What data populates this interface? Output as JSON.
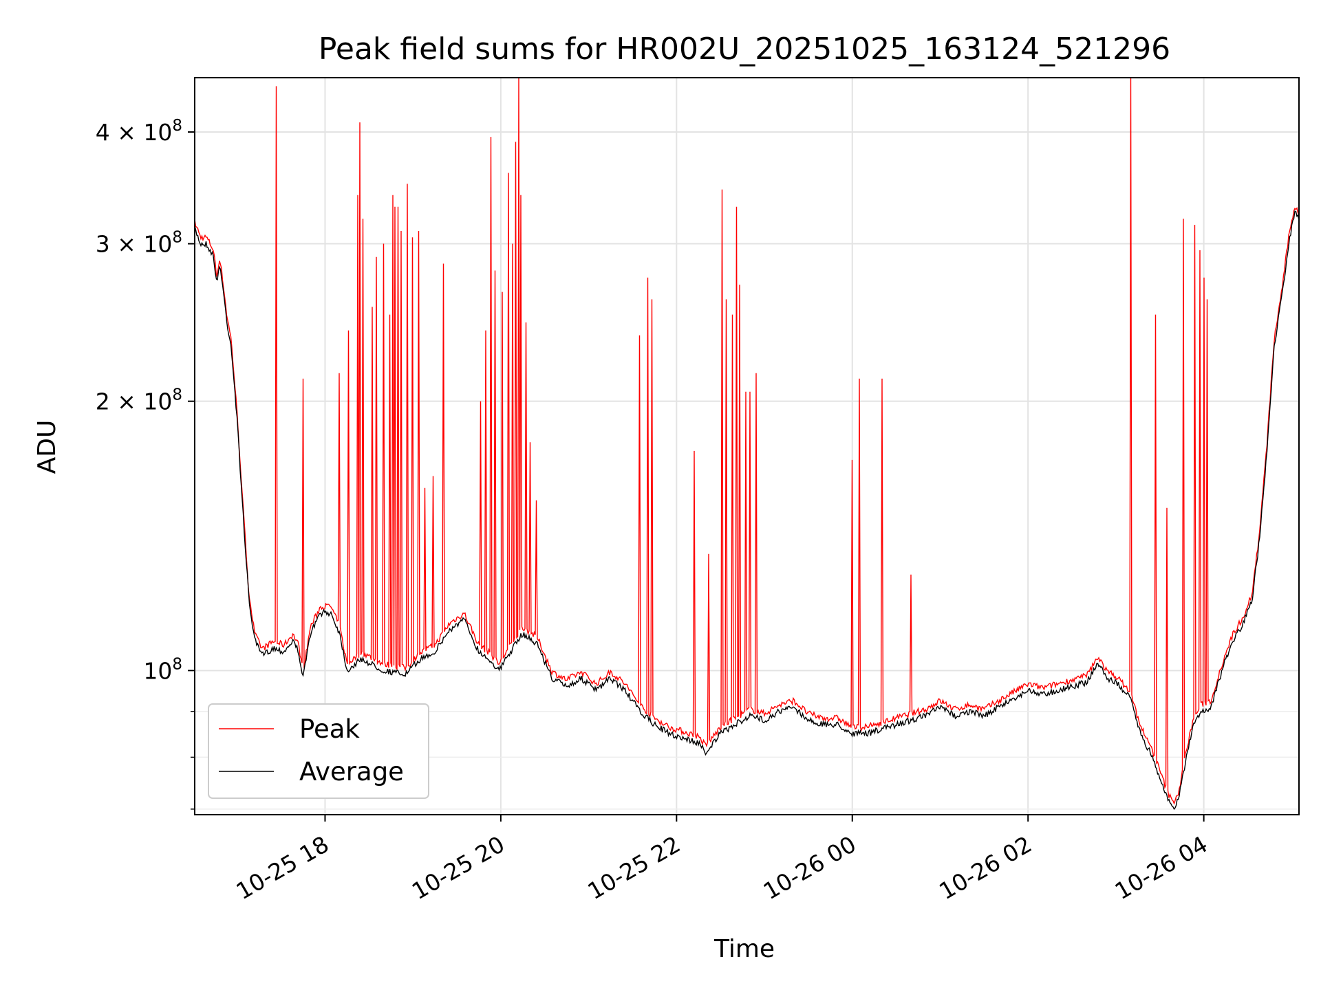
{
  "chart_data": {
    "type": "line",
    "title": "Peak field sums for HR002U_20251025_163124_521296",
    "xlabel": "Time",
    "ylabel": "ADU",
    "x_start": "2025-10-25T16:31",
    "x_end": "2025-10-26T05:05",
    "x_ticks": [
      {
        "time": "2025-10-25T18:00",
        "label": "10-25 18"
      },
      {
        "time": "2025-10-25T20:00",
        "label": "10-25 20"
      },
      {
        "time": "2025-10-25T22:00",
        "label": "10-25 22"
      },
      {
        "time": "2025-10-26T00:00",
        "label": "10-26 00"
      },
      {
        "time": "2025-10-26T02:00",
        "label": "10-26 02"
      },
      {
        "time": "2025-10-26T04:00",
        "label": "10-26 04"
      }
    ],
    "y_scale": "log",
    "ylim": [
      69000000,
      460000000
    ],
    "y_ticks": [
      {
        "value": 100000000,
        "label": "10",
        "exp": "8"
      },
      {
        "value": 200000000,
        "label": "2 × 10",
        "exp": "8"
      },
      {
        "value": 300000000,
        "label": "3 × 10",
        "exp": "8"
      },
      {
        "value": 400000000,
        "label": "4 × 10",
        "exp": "8"
      }
    ],
    "y_minor_ticks": [
      70000000,
      80000000,
      90000000
    ],
    "grid": true,
    "legend_position": "lower-left",
    "series": [
      {
        "name": "Average",
        "color": "#000000",
        "points": [
          [
            "2025-10-25T16:31",
            312000000
          ],
          [
            "2025-10-25T16:35",
            300000000
          ],
          [
            "2025-10-25T16:39",
            300000000
          ],
          [
            "2025-10-25T16:44",
            290000000
          ],
          [
            "2025-10-25T16:46",
            270000000
          ],
          [
            "2025-10-25T16:48",
            285000000
          ],
          [
            "2025-10-25T16:50",
            270000000
          ],
          [
            "2025-10-25T16:53",
            245000000
          ],
          [
            "2025-10-25T16:56",
            230000000
          ],
          [
            "2025-10-25T17:00",
            190000000
          ],
          [
            "2025-10-25T17:04",
            150000000
          ],
          [
            "2025-10-25T17:08",
            120000000
          ],
          [
            "2025-10-25T17:12",
            108000000
          ],
          [
            "2025-10-25T17:17",
            104000000
          ],
          [
            "2025-10-25T17:25",
            106000000
          ],
          [
            "2025-10-25T17:32",
            105000000
          ],
          [
            "2025-10-25T17:38",
            108000000
          ],
          [
            "2025-10-25T17:42",
            105000000
          ],
          [
            "2025-10-25T17:45",
            98000000
          ],
          [
            "2025-10-25T17:50",
            110000000
          ],
          [
            "2025-10-25T17:57",
            116000000
          ],
          [
            "2025-10-25T18:04",
            116000000
          ],
          [
            "2025-10-25T18:10",
            110000000
          ],
          [
            "2025-10-25T18:15",
            100000000
          ],
          [
            "2025-10-25T18:25",
            103000000
          ],
          [
            "2025-10-25T18:40",
            100000000
          ],
          [
            "2025-10-25T18:55",
            99000000
          ],
          [
            "2025-10-25T19:05",
            103000000
          ],
          [
            "2025-10-25T19:15",
            105000000
          ],
          [
            "2025-10-25T19:25",
            111000000
          ],
          [
            "2025-10-25T19:35",
            114000000
          ],
          [
            "2025-10-25T19:45",
            105000000
          ],
          [
            "2025-10-25T19:52",
            103000000
          ],
          [
            "2025-10-25T19:59",
            100000000
          ],
          [
            "2025-10-25T20:05",
            104000000
          ],
          [
            "2025-10-25T20:15",
            110000000
          ],
          [
            "2025-10-25T20:25",
            107000000
          ],
          [
            "2025-10-25T20:35",
            98000000
          ],
          [
            "2025-10-25T20:45",
            96000000
          ],
          [
            "2025-10-25T20:55",
            98000000
          ],
          [
            "2025-10-25T21:05",
            95000000
          ],
          [
            "2025-10-25T21:15",
            98000000
          ],
          [
            "2025-10-25T21:25",
            95000000
          ],
          [
            "2025-10-25T21:35",
            90000000
          ],
          [
            "2025-10-25T21:45",
            87000000
          ],
          [
            "2025-10-25T21:55",
            85000000
          ],
          [
            "2025-10-25T22:05",
            84000000
          ],
          [
            "2025-10-25T22:15",
            83000000
          ],
          [
            "2025-10-25T22:20",
            81000000
          ],
          [
            "2025-10-25T22:30",
            85000000
          ],
          [
            "2025-10-25T22:40",
            87000000
          ],
          [
            "2025-10-25T22:50",
            89000000
          ],
          [
            "2025-10-25T23:00",
            88000000
          ],
          [
            "2025-10-25T23:10",
            90000000
          ],
          [
            "2025-10-25T23:20",
            91000000
          ],
          [
            "2025-10-25T23:30",
            88000000
          ],
          [
            "2025-10-25T23:40",
            87000000
          ],
          [
            "2025-10-25T23:50",
            87000000
          ],
          [
            "2025-10-26T00:00",
            85000000
          ],
          [
            "2025-10-26T00:10",
            85000000
          ],
          [
            "2025-10-26T00:20",
            86000000
          ],
          [
            "2025-10-26T00:30",
            87000000
          ],
          [
            "2025-10-26T00:40",
            88000000
          ],
          [
            "2025-10-26T00:50",
            89000000
          ],
          [
            "2025-10-26T01:00",
            91000000
          ],
          [
            "2025-10-26T01:10",
            89000000
          ],
          [
            "2025-10-26T01:20",
            90000000
          ],
          [
            "2025-10-26T01:30",
            89000000
          ],
          [
            "2025-10-26T01:40",
            91000000
          ],
          [
            "2025-10-26T01:50",
            93000000
          ],
          [
            "2025-10-26T02:00",
            95000000
          ],
          [
            "2025-10-26T02:10",
            94000000
          ],
          [
            "2025-10-26T02:20",
            95000000
          ],
          [
            "2025-10-26T02:30",
            96000000
          ],
          [
            "2025-10-26T02:40",
            97000000
          ],
          [
            "2025-10-26T02:48",
            102000000
          ],
          [
            "2025-10-26T02:54",
            98000000
          ],
          [
            "2025-10-26T03:00",
            97000000
          ],
          [
            "2025-10-26T03:10",
            93000000
          ],
          [
            "2025-10-26T03:15",
            87000000
          ],
          [
            "2025-10-26T03:20",
            83000000
          ],
          [
            "2025-10-26T03:25",
            80000000
          ],
          [
            "2025-10-26T03:30",
            76000000
          ],
          [
            "2025-10-26T03:35",
            72000000
          ],
          [
            "2025-10-26T03:39",
            70000000
          ],
          [
            "2025-10-26T03:43",
            72000000
          ],
          [
            "2025-10-26T03:48",
            80000000
          ],
          [
            "2025-10-26T03:53",
            87000000
          ],
          [
            "2025-10-26T03:58",
            90000000
          ],
          [
            "2025-10-26T04:05",
            91000000
          ],
          [
            "2025-10-26T04:10",
            97000000
          ],
          [
            "2025-10-26T04:15",
            103000000
          ],
          [
            "2025-10-26T04:20",
            108000000
          ],
          [
            "2025-10-26T04:27",
            113000000
          ],
          [
            "2025-10-26T04:33",
            120000000
          ],
          [
            "2025-10-26T04:38",
            140000000
          ],
          [
            "2025-10-26T04:43",
            175000000
          ],
          [
            "2025-10-26T04:48",
            230000000
          ],
          [
            "2025-10-26T04:53",
            260000000
          ],
          [
            "2025-10-26T04:58",
            300000000
          ],
          [
            "2025-10-26T05:02",
            325000000
          ],
          [
            "2025-10-26T05:05",
            320000000
          ]
        ]
      },
      {
        "name": "Peak",
        "color": "#ff0000",
        "spikes": [
          [
            "2025-10-25T17:27",
            450000000
          ],
          [
            "2025-10-25T17:45",
            212000000
          ],
          [
            "2025-10-25T18:10",
            215000000
          ],
          [
            "2025-10-25T18:16",
            240000000
          ],
          [
            "2025-10-25T18:22",
            340000000
          ],
          [
            "2025-10-25T18:24",
            410000000
          ],
          [
            "2025-10-25T18:26",
            320000000
          ],
          [
            "2025-10-25T18:32",
            255000000
          ],
          [
            "2025-10-25T18:35",
            290000000
          ],
          [
            "2025-10-25T18:40",
            300000000
          ],
          [
            "2025-10-25T18:44",
            250000000
          ],
          [
            "2025-10-25T18:46",
            340000000
          ],
          [
            "2025-10-25T18:48",
            330000000
          ],
          [
            "2025-10-25T18:50",
            330000000
          ],
          [
            "2025-10-25T18:52",
            310000000
          ],
          [
            "2025-10-25T18:56",
            350000000
          ],
          [
            "2025-10-25T19:00",
            305000000
          ],
          [
            "2025-10-25T19:04",
            310000000
          ],
          [
            "2025-10-25T19:08",
            160000000
          ],
          [
            "2025-10-25T19:14",
            165000000
          ],
          [
            "2025-10-25T19:21",
            285000000
          ],
          [
            "2025-10-25T19:46",
            200000000
          ],
          [
            "2025-10-25T19:50",
            240000000
          ],
          [
            "2025-10-25T19:53",
            395000000
          ],
          [
            "2025-10-25T19:56",
            280000000
          ],
          [
            "2025-10-25T20:01",
            265000000
          ],
          [
            "2025-10-25T20:05",
            360000000
          ],
          [
            "2025-10-25T20:08",
            300000000
          ],
          [
            "2025-10-25T20:10",
            390000000
          ],
          [
            "2025-10-25T20:12",
            460000000
          ],
          [
            "2025-10-25T20:14",
            340000000
          ],
          [
            "2025-10-25T20:17",
            245000000
          ],
          [
            "2025-10-25T20:20",
            180000000
          ],
          [
            "2025-10-25T20:24",
            155000000
          ],
          [
            "2025-10-25T21:35",
            237000000
          ],
          [
            "2025-10-25T21:40",
            275000000
          ],
          [
            "2025-10-25T21:43",
            260000000
          ],
          [
            "2025-10-25T22:12",
            176000000
          ],
          [
            "2025-10-25T22:22",
            135000000
          ],
          [
            "2025-10-25T22:31",
            345000000
          ],
          [
            "2025-10-25T22:34",
            260000000
          ],
          [
            "2025-10-25T22:38",
            250000000
          ],
          [
            "2025-10-25T22:41",
            330000000
          ],
          [
            "2025-10-25T22:43",
            270000000
          ],
          [
            "2025-10-25T22:47",
            205000000
          ],
          [
            "2025-10-25T22:50",
            205000000
          ],
          [
            "2025-10-25T22:54",
            215000000
          ],
          [
            "2025-10-26T00:00",
            172000000
          ],
          [
            "2025-10-26T00:05",
            212000000
          ],
          [
            "2025-10-26T00:20",
            212000000
          ],
          [
            "2025-10-26T00:40",
            128000000
          ],
          [
            "2025-10-26T03:10",
            460000000
          ],
          [
            "2025-10-26T03:27",
            250000000
          ],
          [
            "2025-10-26T03:35",
            152000000
          ],
          [
            "2025-10-26T03:46",
            320000000
          ],
          [
            "2025-10-26T03:54",
            315000000
          ],
          [
            "2025-10-26T03:57",
            295000000
          ],
          [
            "2025-10-26T04:00",
            275000000
          ],
          [
            "2025-10-26T04:02",
            260000000
          ]
        ]
      }
    ]
  }
}
